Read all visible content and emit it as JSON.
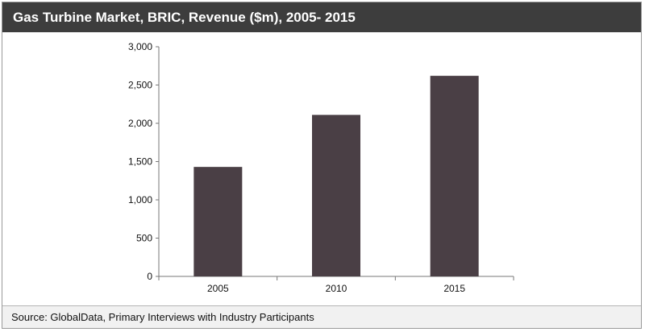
{
  "title": "Gas Turbine Market, BRIC, Revenue ($m), 2005- 2015",
  "source": "Source: GlobalData, Primary Interviews with Industry Participants",
  "colors": {
    "bar": "#4a3f45",
    "title_bg": "#3d3d3d",
    "source_bg": "#f1f1f1"
  },
  "chart_data": {
    "type": "bar",
    "title": "Gas Turbine Market, BRIC, Revenue ($m), 2005- 2015",
    "categories": [
      "2005",
      "2010",
      "2015"
    ],
    "values": [
      1430,
      2110,
      2620
    ],
    "xlabel": "",
    "ylabel": "",
    "ylim": [
      0,
      3000
    ],
    "yticks": [
      0,
      500,
      1000,
      1500,
      2000,
      2500,
      3000
    ],
    "ytick_labels": [
      "0",
      "500",
      "1,000",
      "1,500",
      "2,000",
      "2,500",
      "3,000"
    ],
    "grid": false,
    "legend": "none"
  }
}
